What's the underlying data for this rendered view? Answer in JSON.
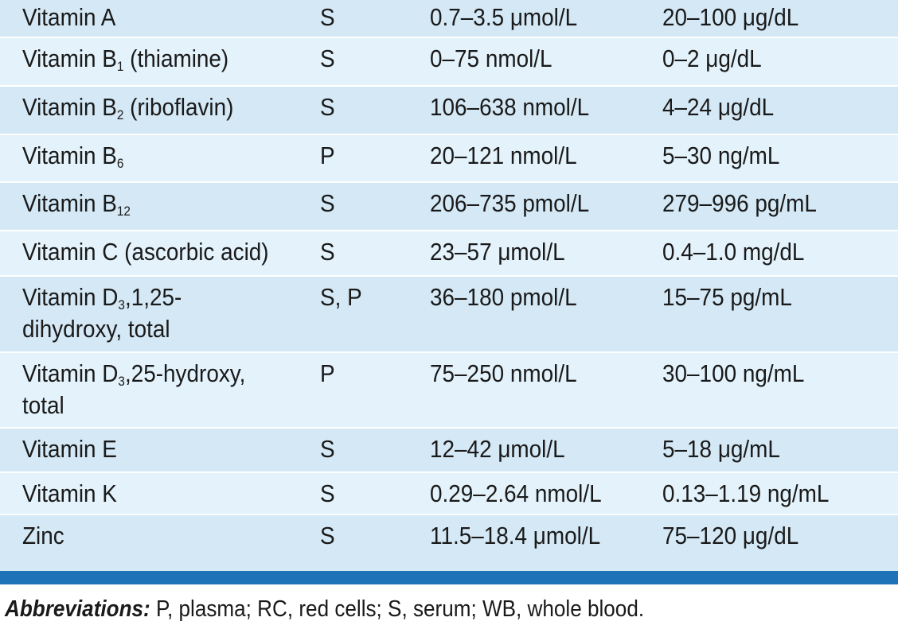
{
  "table": {
    "rows": [
      {
        "name": "Vitamin A",
        "specimen": "S",
        "si": "0.7–3.5 μmol/L",
        "conventional": "20–100 μg/dL"
      },
      {
        "name_pre": "Vitamin B",
        "name_sub": "1",
        "name_post": " (thiamine)",
        "specimen": "S",
        "si": "0–75 nmol/L",
        "conventional": "0–2 μg/dL"
      },
      {
        "name_pre": "Vitamin B",
        "name_sub": "2",
        "name_post": " (riboflavin)",
        "specimen": "S",
        "si": "106–638 nmol/L",
        "conventional": "4–24 μg/dL"
      },
      {
        "name_pre": "Vitamin B",
        "name_sub": "6",
        "name_post": "",
        "specimen": "P",
        "si": "20–121 nmol/L",
        "conventional": "5–30 ng/mL"
      },
      {
        "name_pre": "Vitamin B",
        "name_sub": "12",
        "name_post": "",
        "specimen": "S",
        "si": "206–735 pmol/L",
        "conventional": "279–996 pg/mL"
      },
      {
        "name": "Vitamin C (ascorbic acid)",
        "specimen": "S",
        "si": "23–57 μmol/L",
        "conventional": "0.4–1.0 mg/dL"
      },
      {
        "name_pre": "Vitamin D",
        "name_sub": "3",
        "name_post": ",1,25-",
        "name_line2": "dihydroxy, total",
        "specimen": "S, P",
        "si": "36–180 pmol/L",
        "conventional": "15–75 pg/mL"
      },
      {
        "name_pre": "Vitamin D",
        "name_sub": "3",
        "name_post": ",25-hydroxy,",
        "name_line2": "total",
        "specimen": "P",
        "si": "75–250 nmol/L",
        "conventional": "30–100 ng/mL"
      },
      {
        "name": "Vitamin E",
        "specimen": "S",
        "si": "12–42 μmol/L",
        "conventional": "5–18 μg/mL"
      },
      {
        "name": "Vitamin K",
        "specimen": "S",
        "si": "0.29–2.64 nmol/L",
        "conventional": "0.13–1.19 ng/mL"
      },
      {
        "name": "Zinc",
        "specimen": "S",
        "si": "11.5–18.4 μmol/L",
        "conventional": "75–120 μg/dL"
      }
    ]
  },
  "footnote": {
    "label": "Abbreviations:",
    "text": " P, plasma; RC, red cells; S, serum; WB, whole blood."
  },
  "colors": {
    "row_odd": "#d4e8f5",
    "row_even": "#e3f2fb",
    "bottom_bar": "#1e73b8"
  }
}
